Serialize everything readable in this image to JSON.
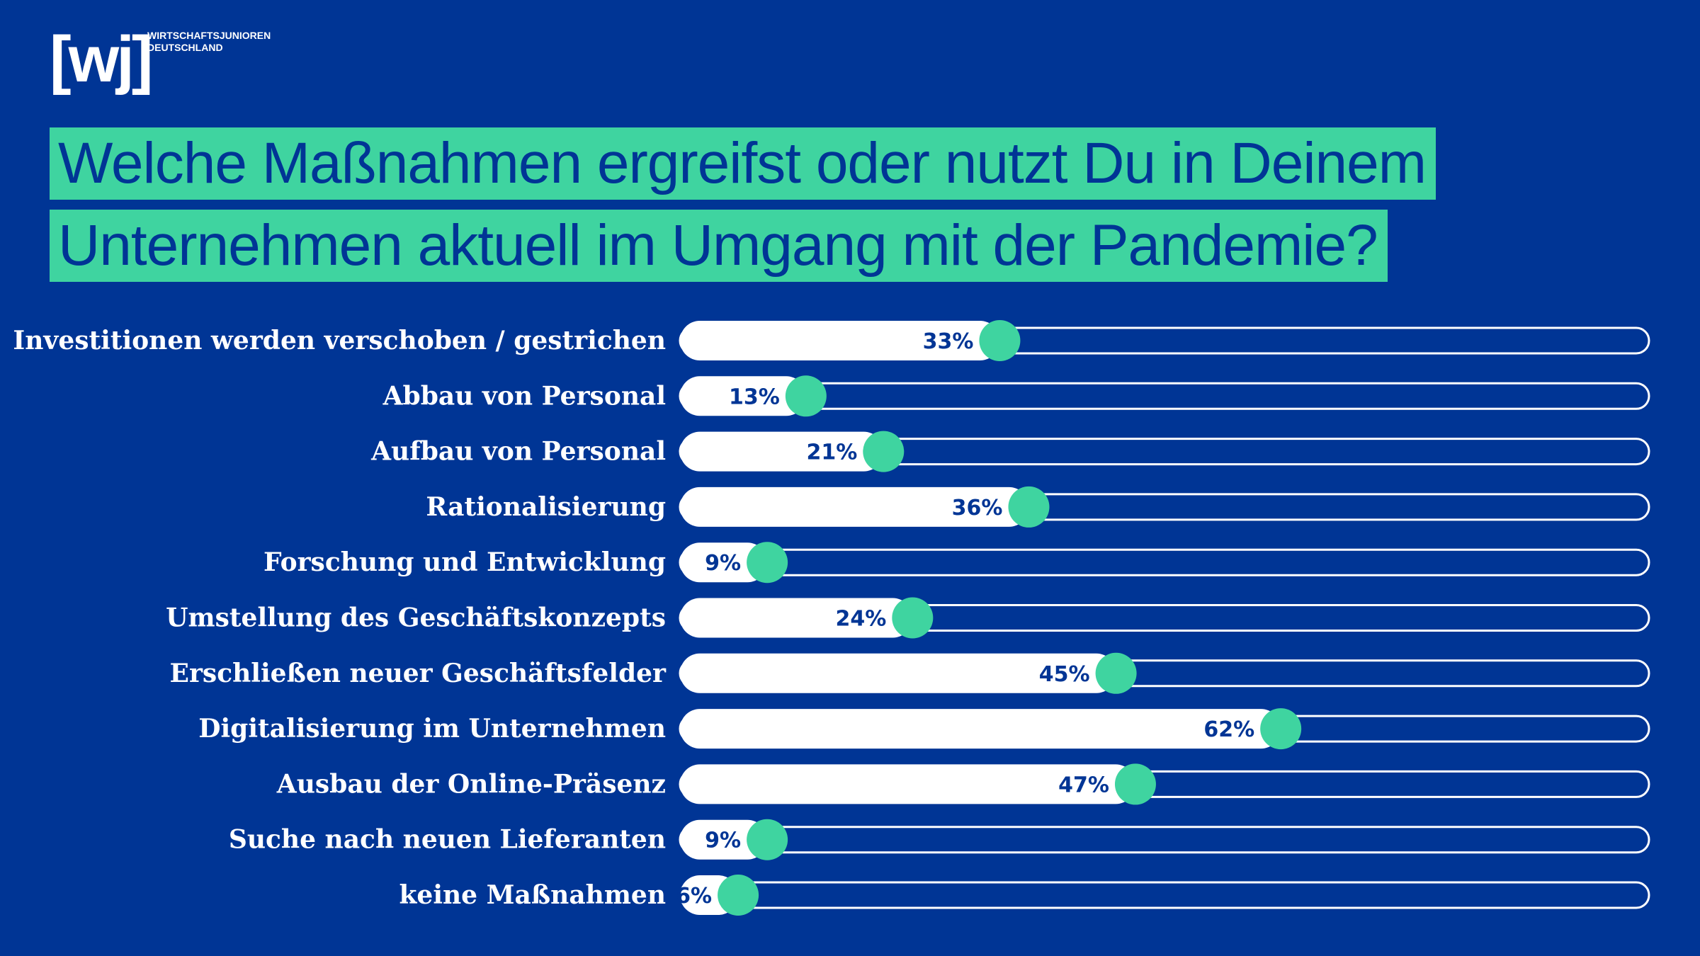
{
  "logo": {
    "mark": "[wj]",
    "line1": "WIRTSCHAFTSJUNIOREN",
    "line2": "DEUTSCHLAND"
  },
  "title": {
    "line1": "Welche Maßnahmen ergreifst oder nutzt Du in Deinem",
    "line2": "Unternehmen aktuell im Umgang mit der Pandemie?"
  },
  "colors": {
    "background": "#003595",
    "accent": "#3fd4a0",
    "bar": "#ffffff"
  },
  "chart_data": {
    "type": "bar",
    "orientation": "horizontal",
    "categories": [
      "Investitionen werden verschoben / gestrichen",
      "Abbau von Personal",
      "Aufbau von Personal",
      "Rationalisierung",
      "Forschung und Entwicklung",
      "Umstellung des Geschäftskonzepts",
      "Erschließen neuer Geschäftsfelder",
      "Digitalisierung im Unternehmen",
      "Ausbau der Online-Präsenz",
      "Suche nach neuen Lieferanten",
      "keine Maßnahmen"
    ],
    "values": [
      33,
      13,
      21,
      36,
      9,
      24,
      45,
      62,
      47,
      9,
      6
    ],
    "value_labels": [
      "33%",
      "13%",
      "21%",
      "36%",
      "9%",
      "24%",
      "45%",
      "62%",
      "47%",
      "9%",
      "6%"
    ],
    "unit": "%",
    "xlim": [
      0,
      100
    ],
    "grid": false,
    "legend": "none"
  }
}
